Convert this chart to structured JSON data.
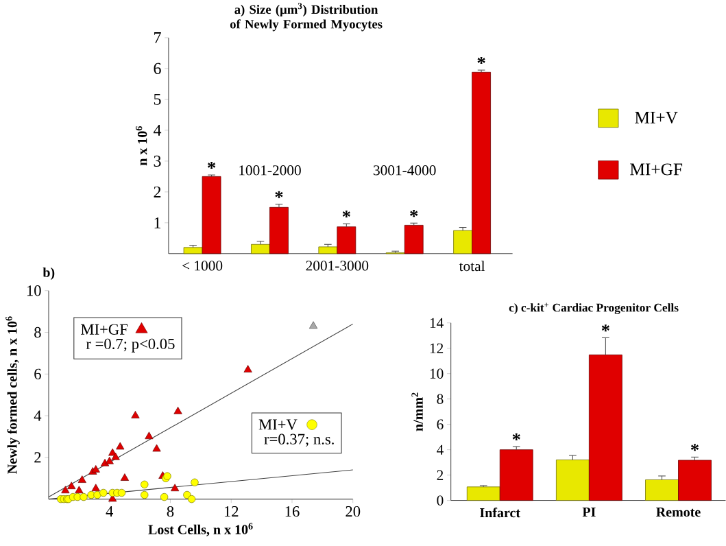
{
  "chart_data": [
    {
      "type": "bar",
      "title": "a) Size (µm$^{3}$)  Distribution of Newly Formed Myocytes",
      "ylabel": "n x 10$^{6}$",
      "categories": [
        "< 1000",
        "1001-2000",
        "2001-3000",
        "3001-4000",
        "total"
      ],
      "ylim": [
        0,
        7
      ],
      "yticks": [
        1,
        2,
        3,
        4,
        5,
        6,
        7
      ],
      "legend": "right",
      "series": [
        {
          "name": "MI+V",
          "color": "#e8e800",
          "values": [
            0.2,
            0.3,
            0.22,
            0.03,
            0.75
          ],
          "errors": [
            0.07,
            0.1,
            0.08,
            0.05,
            0.1
          ]
        },
        {
          "name": "MI+GF",
          "color": "#e00000",
          "values": [
            2.5,
            1.5,
            0.87,
            0.92,
            5.88
          ],
          "errors": [
            0.05,
            0.1,
            0.1,
            0.07,
            0.07
          ],
          "value_labels": [
            "*",
            "*",
            "*",
            "*",
            "*"
          ]
        }
      ]
    },
    {
      "type": "scatter",
      "title": "b)",
      "xlabel": "Lost Cells, n x 10$^{6}$",
      "ylabel": "Newly formed cells, n x 10$^{6}$",
      "xlim": [
        0,
        20
      ],
      "ylim": [
        0,
        10
      ],
      "xticks": [
        4,
        8,
        12,
        16,
        20
      ],
      "yticks": [
        2,
        4,
        6,
        8,
        10
      ],
      "legend": "top left",
      "annotations": [
        "r =0.7; p<0.05",
        "r=0.37; n.s."
      ],
      "series": [
        {
          "name": "MI+GF",
          "color": "#e00000",
          "marker": "triangle",
          "x": [
            1.1,
            1.5,
            2.0,
            2.2,
            2.9,
            3.1,
            3.1,
            3.7,
            4.0,
            4.2,
            4.4,
            4.2,
            4.7,
            5.0,
            5.7,
            6.6,
            7.1,
            7.5,
            8.5,
            8.3,
            13.1
          ],
          "values": [
            0.4,
            0.6,
            0.4,
            0.9,
            1.3,
            1.4,
            0.5,
            1.7,
            1.8,
            2.2,
            2.0,
            0.0,
            2.5,
            1.0,
            4.0,
            3.0,
            2.4,
            1.1,
            4.2,
            0.5,
            6.2
          ]
        },
        {
          "name": "MI+V",
          "color": "#ffff00",
          "marker": "circle",
          "x": [
            0.8,
            1.0,
            1.2,
            1.3,
            1.6,
            1.9,
            2.3,
            2.8,
            3.2,
            3.6,
            4.2,
            4.5,
            4.8,
            6.3,
            6.3,
            7.6,
            7.7,
            7.8,
            9.1,
            9.4,
            9.6
          ],
          "values": [
            0.0,
            0.0,
            0.0,
            0.0,
            0.1,
            0.1,
            0.1,
            0.2,
            0.2,
            0.3,
            0.3,
            0.3,
            0.3,
            0.7,
            0.2,
            0.1,
            1.0,
            1.1,
            0.2,
            0.0,
            0.8
          ]
        },
        {
          "color": "#a8a8a8",
          "marker": "triangle",
          "x": [
            17.4
          ],
          "values": [
            8.3
          ]
        },
        {
          "type": "line",
          "color": "#404040",
          "marker": "none",
          "x": [
            0,
            20
          ],
          "values": [
            0.1,
            8.4
          ]
        },
        {
          "type": "line",
          "color": "#404040",
          "marker": "none",
          "x": [
            0,
            20
          ],
          "values": [
            0.0,
            1.4
          ]
        }
      ]
    },
    {
      "type": "bar",
      "title": "c)  c-kit$^{+}$ Cardiac Progenitor Cells",
      "ylabel": "n/mm$^{2}$",
      "categories": [
        "Infarct",
        "PI",
        "Remote"
      ],
      "ylim": [
        0,
        14
      ],
      "yticks": [
        0,
        2,
        4,
        6,
        8,
        10,
        12,
        14
      ],
      "series": [
        {
          "color": "#e8e800",
          "values": [
            1.07,
            3.2,
            1.63
          ],
          "errors": [
            0.1,
            0.35,
            0.3
          ]
        },
        {
          "color": "#e00000",
          "values": [
            4.0,
            11.48,
            3.17
          ],
          "errors": [
            0.25,
            1.35,
            0.25
          ],
          "value_labels": [
            "*",
            "*",
            "*"
          ]
        }
      ]
    }
  ]
}
